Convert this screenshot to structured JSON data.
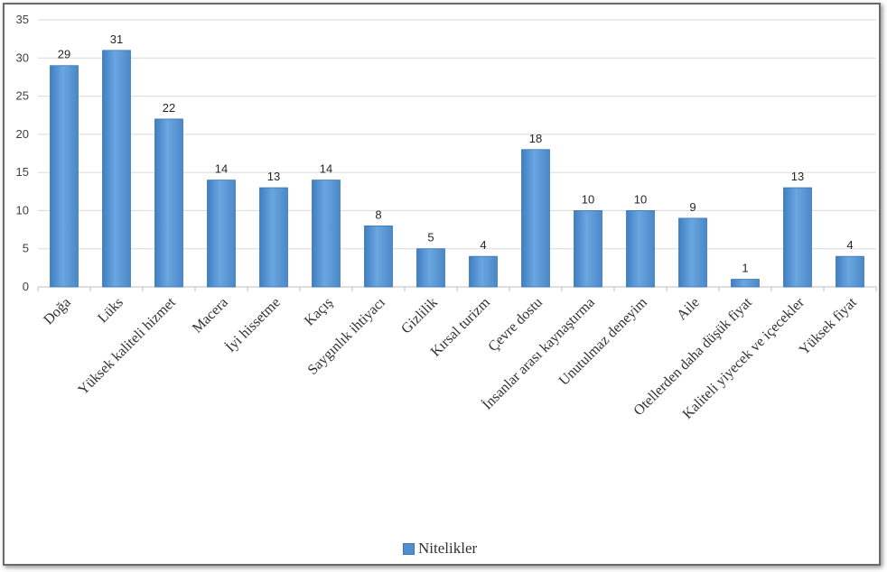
{
  "chart_data": {
    "type": "bar",
    "categories": [
      "Doğa",
      "Lüks",
      "Yüksek kaliteli hizmet",
      "Macera",
      "İyi hissetme",
      "Kaçış",
      "Saygınlık ihtiyacı",
      "Gizlilik",
      "Kırsal turizm",
      "Çevre dostu",
      "İnsanlar arası kaynaştırma",
      "Unutulmaz deneyim",
      "Aile",
      "Otellerden daha düşük fiyat",
      "Kaliteli yiyecek ve içecekler",
      "Yüksek fiyat"
    ],
    "series": [
      {
        "name": "Nitelikler",
        "values": [
          29,
          31,
          22,
          14,
          13,
          14,
          8,
          5,
          4,
          18,
          10,
          10,
          9,
          1,
          13,
          4
        ]
      }
    ],
    "ylim": [
      0,
      35
    ],
    "yticks": [
      0,
      5,
      10,
      15,
      20,
      25,
      30,
      35
    ],
    "grid": true,
    "legend_position": "bottom",
    "colors": {
      "bar": "#4f8fd0",
      "bar_edge": "#3a76b8",
      "grid": "#d9d9d9"
    }
  }
}
